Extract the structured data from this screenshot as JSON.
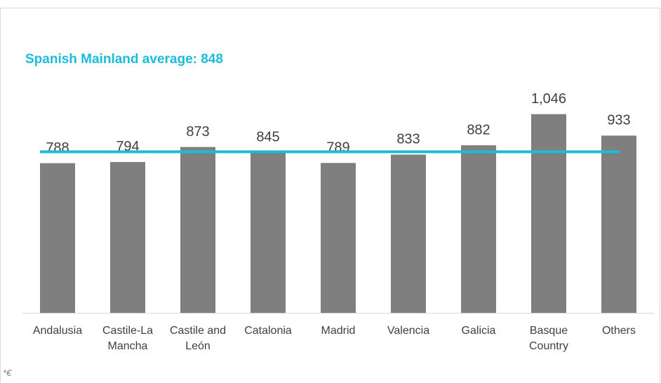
{
  "chart_data": {
    "type": "bar",
    "title": "Spanish Mainland average: 848",
    "categories": [
      "Andalusia",
      "Castile-La Mancha",
      "Castile and León",
      "Catalonia",
      "Madrid",
      "Valencia",
      "Galicia",
      "Basque Country",
      "Others"
    ],
    "values": [
      788,
      794,
      873,
      845,
      789,
      833,
      882,
      1046,
      933
    ],
    "value_labels": [
      "788",
      "794",
      "873",
      "845",
      "789",
      "833",
      "882",
      "1,046",
      "933"
    ],
    "color": "#7f7f7f",
    "average": 848,
    "average_color": "#1cbcd8",
    "ylim": [
      0,
      1200
    ],
    "footnote": "*€"
  }
}
